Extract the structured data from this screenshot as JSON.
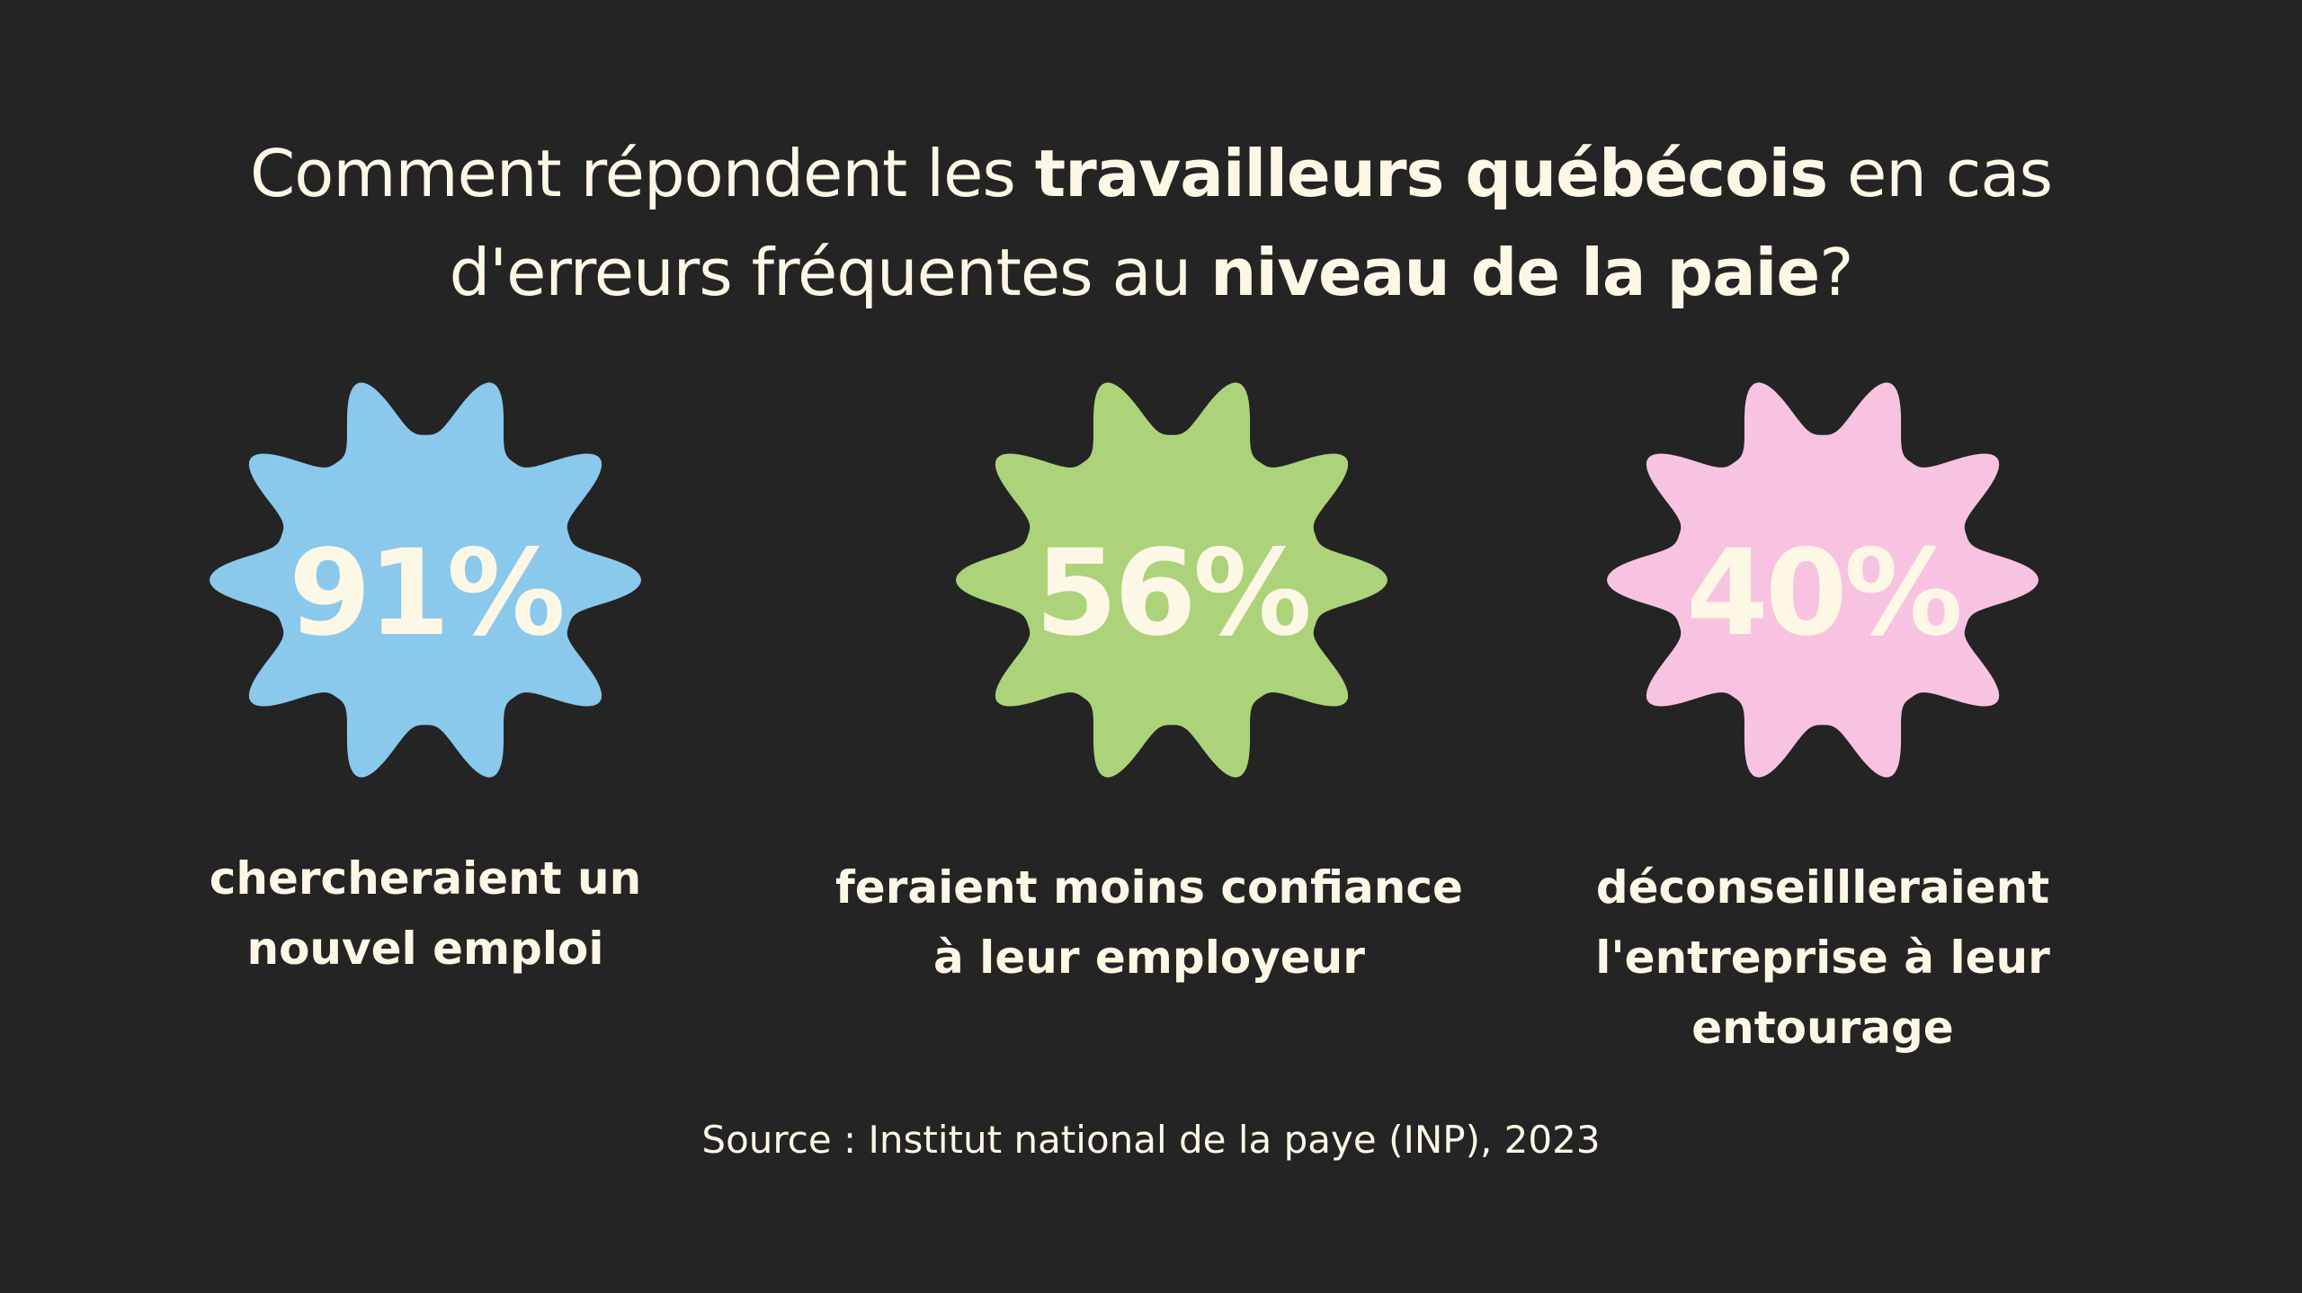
{
  "title": {
    "line1_a": "Comment répondent les ",
    "line1_b": "travailleurs québécois",
    "line1_c": " en cas",
    "line2_a": "d'erreurs fréquentes au ",
    "line2_b": "niveau de la paie",
    "line2_c": "?"
  },
  "stats": [
    {
      "value": "91%",
      "color": "#8ac9ec",
      "caption_lines": [
        "chercheraient un",
        "nouvel emploi"
      ]
    },
    {
      "value": "56%",
      "color": "#acd37a",
      "caption_lines": [
        "feraient moins confiance",
        "à leur employeur"
      ]
    },
    {
      "value": "40%",
      "color": "#f8c3e0",
      "caption_lines": [
        "déconseillleraient",
        "l'entreprise à leur",
        "entourage"
      ]
    }
  ],
  "source": "Source : Institut national de la paye (INP), 2023"
}
